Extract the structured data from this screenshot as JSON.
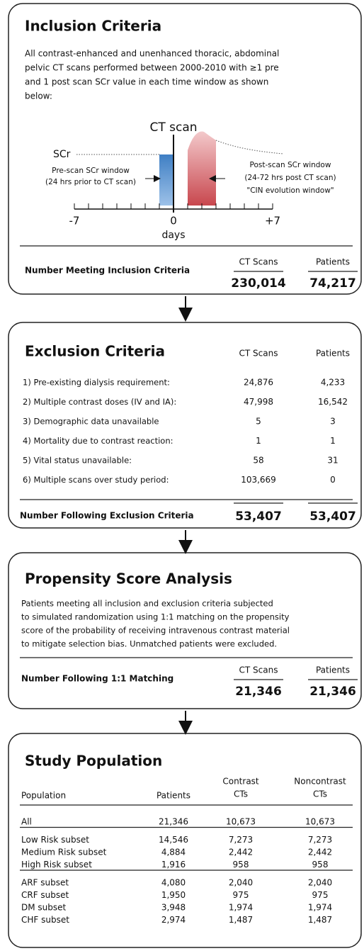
{
  "inclusion": {
    "title": "Inclusion Criteria",
    "description": [
      "All contrast-enhanced and unenhanced thoracic, abdominal",
      "pelvic CT scans performed between 2000-2010 with ≥1 pre",
      "and 1 post scan  SCr value in each time window as shown",
      "below:"
    ],
    "diagram": {
      "ct_label": "CT scan",
      "scr_label": "SCr",
      "pre_window": [
        "Pre-scan SCr window",
        "(24 hrs prior to CT scan)"
      ],
      "post_window": [
        "Post-scan SCr window",
        "(24-72 hrs post CT scan)",
        "\"CIN evolution window\""
      ],
      "axis_ticks": [
        "-7",
        "0",
        "+7"
      ],
      "axis_label": "days"
    },
    "summary": {
      "label": "Number Meeting Inclusion Criteria",
      "columns": [
        "CT Scans",
        "Patients"
      ],
      "values": [
        "230,014",
        "74,217"
      ]
    }
  },
  "exclusion": {
    "title": "Exclusion Criteria",
    "columns": [
      "CT Scans",
      "Patients"
    ],
    "rows": [
      [
        "1) Pre-existing dialysis requirement:",
        "24,876",
        "4,233"
      ],
      [
        "2) Multiple contrast doses (IV and IA):",
        "47,998",
        "16,542"
      ],
      [
        "3) Demographic data unavailable",
        "5",
        "3"
      ],
      [
        "4) Mortality due to contrast reaction:",
        "1",
        "1"
      ],
      [
        "5) Vital status unavailable:",
        "58",
        "31"
      ],
      [
        "6) Multiple scans over study period:",
        "103,669",
        "0"
      ]
    ],
    "summary": {
      "label": "Number Following Exclusion Criteria",
      "values": [
        "53,407",
        "53,407"
      ]
    }
  },
  "propensity": {
    "title": "Propensity Score Analysis",
    "description": [
      "Patients meeting all inclusion and exclusion criteria subjected",
      "to simulated randomization using 1:1 matching on the propensity",
      "score of the probability of receiving intravenous contrast material",
      "to mitigate selection bias. Unmatched patients were excluded."
    ],
    "summary": {
      "label": "Number Following 1:1 Matching",
      "columns": [
        "CT Scans",
        "Patients"
      ],
      "values": [
        "21,346",
        "21,346"
      ]
    }
  },
  "study": {
    "title": "Study Population",
    "columns": [
      [
        "Population"
      ],
      [
        "Patients"
      ],
      [
        "Contrast",
        "CTs"
      ],
      [
        "Noncontrast",
        "CTs"
      ]
    ],
    "groups": [
      [
        [
          "All",
          "21,346",
          "10,673",
          "10,673"
        ]
      ],
      [
        [
          "Low Risk  subset",
          "14,546",
          "7,273",
          "7,273"
        ],
        [
          "Medium Risk subset",
          "4,884",
          "2,442",
          "2,442"
        ],
        [
          "High Risk subset",
          "1,916",
          "958",
          "958"
        ]
      ],
      [
        [
          "ARF subset",
          "4,080",
          "2,040",
          "2,040"
        ],
        [
          "CRF subset",
          "1,950",
          "975",
          "975"
        ],
        [
          "DM subset",
          "3,948",
          "1,974",
          "1,974"
        ],
        [
          "CHF subset",
          "2,974",
          "1,487",
          "1,487"
        ]
      ]
    ]
  }
}
